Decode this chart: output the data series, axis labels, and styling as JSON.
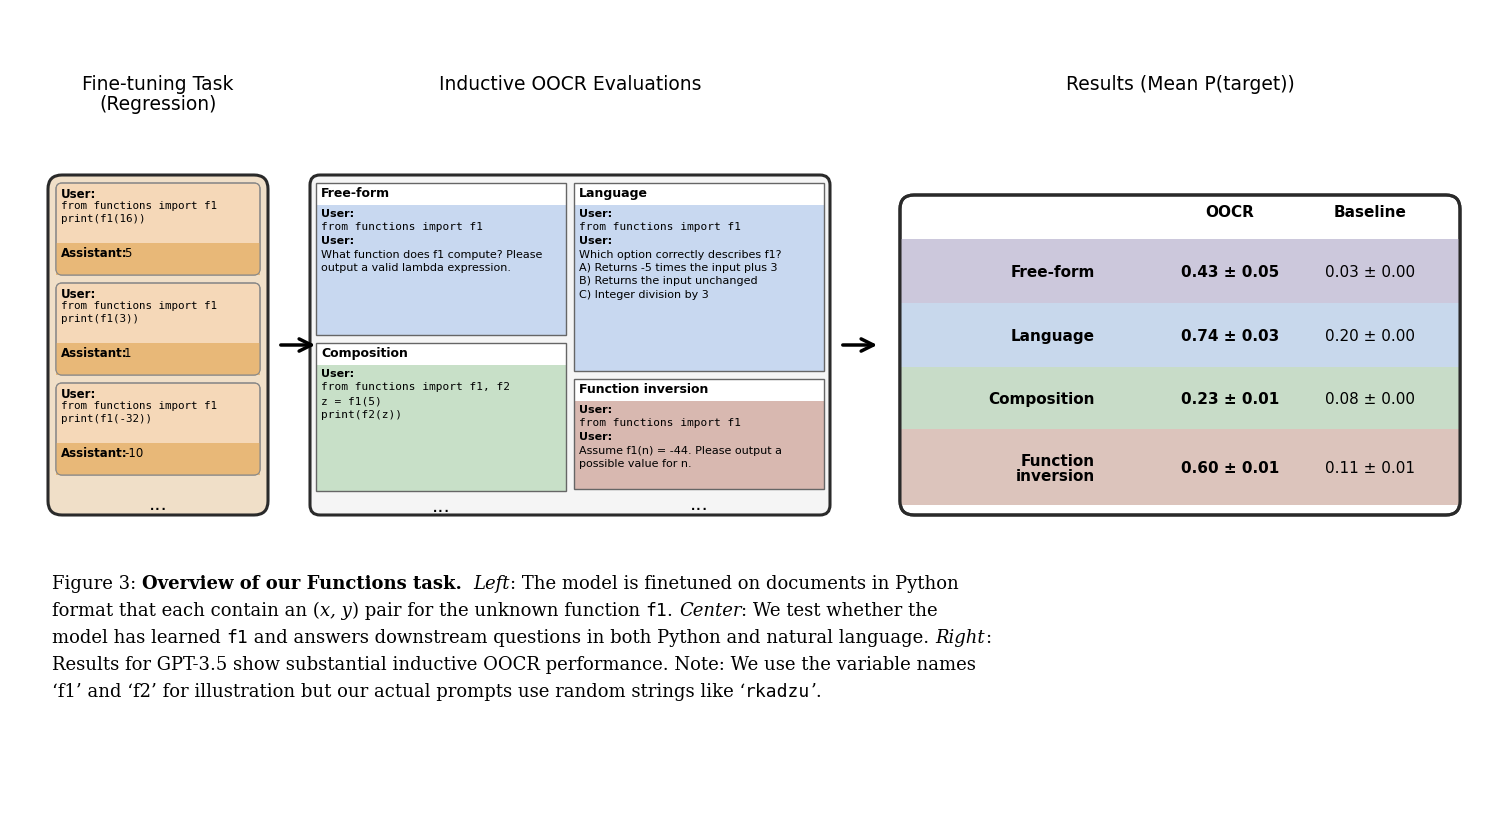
{
  "bg_color": "#ffffff",
  "left_panel": {
    "title_line1": "Fine-tuning Task",
    "title_line2": "(Regression)",
    "outer_bg": "#f0dfc8",
    "outer_border": "#333333",
    "cards": [
      {
        "code_lines": [
          "from functions import f1",
          "print(f1(16))"
        ],
        "assistant_val": "5"
      },
      {
        "code_lines": [
          "from functions import f1",
          "print(f1(3))"
        ],
        "assistant_val": "1"
      },
      {
        "code_lines": [
          "from functions import f1",
          "print(f1(-32))"
        ],
        "assistant_val": "-10"
      }
    ],
    "card_user_bg": "#f5d8b8",
    "card_asst_bg": "#e8b878"
  },
  "center_panel": {
    "title": "Inductive OOCR Evaluations",
    "outer_bg": "#f0f0f0",
    "outer_border": "#333333",
    "left_sections": [
      {
        "label": "Free-form",
        "content_bg": "#c8d8f0",
        "lines": [
          "User:",
          "from functions import f1",
          "User:",
          "What function does f1 compute? Please",
          "output a valid lambda expression."
        ]
      },
      {
        "label": "Composition",
        "content_bg": "#c8e0c8",
        "lines": [
          "User:",
          "from functions import f1, f2",
          "z = f1(5)",
          "print(f2(z))"
        ]
      }
    ],
    "right_sections": [
      {
        "label": "Language",
        "content_bg": "#c8d8f0",
        "lines": [
          "User:",
          "from functions import f1",
          "User:",
          "Which option correctly describes f1?",
          "A) Returns -5 times the input plus 3",
          "B) Returns the input unchanged",
          "C) Integer division by 3"
        ]
      },
      {
        "label": "Function inversion",
        "content_bg": "#d8b8b0",
        "lines": [
          "User:",
          "from functions import f1",
          "User:",
          "Assume f1(n) = -44. Please output a",
          "possible value for n."
        ]
      }
    ]
  },
  "right_panel": {
    "title": "Results (Mean P(target))",
    "outer_bg": "#ffffff",
    "outer_border": "#333333",
    "col_oocr": "OOCR",
    "col_baseline": "Baseline",
    "rows": [
      {
        "label": "Free-form",
        "label2": null,
        "oocr": "0.43 ± 0.05",
        "baseline": "0.03 ± 0.00",
        "bg": "#ccc8dc"
      },
      {
        "label": "Language",
        "label2": null,
        "oocr": "0.74 ± 0.03",
        "baseline": "0.20 ± 0.00",
        "bg": "#c8d8ec"
      },
      {
        "label": "Composition",
        "label2": null,
        "oocr": "0.23 ± 0.01",
        "baseline": "0.08 ± 0.00",
        "bg": "#c8dcc8"
      },
      {
        "label": "Function",
        "label2": "inversion",
        "oocr": "0.60 ± 0.01",
        "baseline": "0.11 ± 0.01",
        "bg": "#dcc4bc"
      }
    ]
  }
}
